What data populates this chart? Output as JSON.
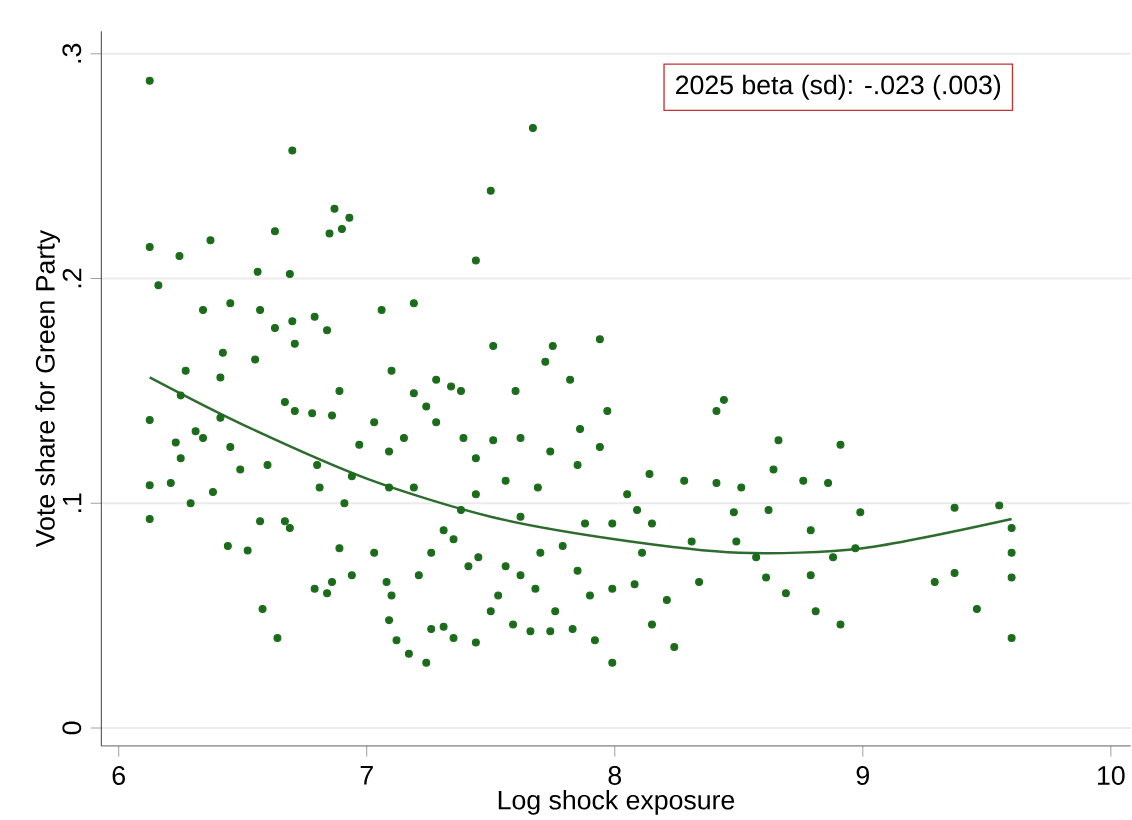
{
  "chart_data": {
    "type": "scatter",
    "xlabel": "Log shock exposure",
    "ylabel": "Vote share for Green Party",
    "annotations": [
      "2025 beta (sd): -.023 (.003)"
    ],
    "xlim": [
      5.93,
      10.08
    ],
    "xticks": [
      6,
      7,
      8,
      9,
      10
    ],
    "ylim": [
      -0.008,
      0.31
    ],
    "yticks": [
      {
        "value": 0,
        "label": "0"
      },
      {
        "value": 0.1,
        "label": ".1"
      },
      {
        "value": 0.2,
        "label": ".2"
      },
      {
        "value": 0.3,
        "label": ".3"
      }
    ],
    "grid": "y",
    "series": [
      {
        "marker": "circle",
        "color": "#1a6b1a",
        "x": [
          6.125,
          6.125,
          6.16,
          6.125,
          6.125,
          6.125,
          6.245,
          6.37,
          6.34,
          6.45,
          6.42,
          6.41,
          6.27,
          6.25,
          6.23,
          6.25,
          6.31,
          6.34,
          6.21,
          6.29,
          6.41,
          6.45,
          6.49,
          6.38,
          6.44,
          6.52,
          6.55,
          6.56,
          6.57,
          6.63,
          6.63,
          6.6,
          6.57,
          6.58,
          6.64,
          6.7,
          6.69,
          6.7,
          6.71,
          6.67,
          6.71,
          6.67,
          6.69,
          6.79,
          6.84,
          6.87,
          6.85,
          6.9,
          6.93,
          6.78,
          6.86,
          6.89,
          6.8,
          6.81,
          6.79,
          6.84,
          6.86,
          6.89,
          6.94,
          6.91,
          6.94,
          6.97,
          7.06,
          7.19,
          7.1,
          7.03,
          7.09,
          7.15,
          7.19,
          7.24,
          7.28,
          7.34,
          7.38,
          7.39,
          7.28,
          7.19,
          7.09,
          7.03,
          7.08,
          7.1,
          7.09,
          7.12,
          7.17,
          7.24,
          7.26,
          7.31,
          7.35,
          7.44,
          7.21,
          7.26,
          7.31,
          7.35,
          7.41,
          7.45,
          7.44,
          7.38,
          7.44,
          7.51,
          7.51,
          7.44,
          7.5,
          7.67,
          7.6,
          7.72,
          7.75,
          7.82,
          7.62,
          7.74,
          7.56,
          7.62,
          7.69,
          7.56,
          7.62,
          7.68,
          7.59,
          7.66,
          7.74,
          7.76,
          7.53,
          7.5,
          7.7,
          7.79,
          7.85,
          7.86,
          7.94,
          7.97,
          7.94,
          7.88,
          7.85,
          7.9,
          7.83,
          7.92,
          7.99,
          7.99,
          7.99,
          8.05,
          8.09,
          8.14,
          8.15,
          8.08,
          8.15,
          8.24,
          8.21,
          8.11,
          8.28,
          8.41,
          8.44,
          8.41,
          8.51,
          8.48,
          8.31,
          8.34,
          8.49,
          8.57,
          8.61,
          8.62,
          8.64,
          8.66,
          8.69,
          8.76,
          8.79,
          8.79,
          8.81,
          8.86,
          8.91,
          8.88,
          8.91,
          8.97,
          8.99,
          9.29,
          9.37,
          9.37,
          9.46,
          9.55,
          9.6,
          9.6,
          9.6,
          9.6
        ],
        "values": [
          0.288,
          0.214,
          0.197,
          0.137,
          0.108,
          0.093,
          0.21,
          0.217,
          0.186,
          0.189,
          0.167,
          0.156,
          0.159,
          0.148,
          0.127,
          0.12,
          0.132,
          0.129,
          0.109,
          0.1,
          0.138,
          0.125,
          0.115,
          0.105,
          0.081,
          0.079,
          0.164,
          0.203,
          0.186,
          0.221,
          0.178,
          0.117,
          0.092,
          0.053,
          0.04,
          0.257,
          0.202,
          0.181,
          0.171,
          0.145,
          0.141,
          0.092,
          0.089,
          0.183,
          0.177,
          0.231,
          0.22,
          0.222,
          0.227,
          0.14,
          0.139,
          0.15,
          0.117,
          0.107,
          0.062,
          0.06,
          0.065,
          0.08,
          0.068,
          0.1,
          0.112,
          0.126,
          0.186,
          0.189,
          0.159,
          0.136,
          0.123,
          0.129,
          0.149,
          0.143,
          0.155,
          0.152,
          0.15,
          0.129,
          0.136,
          0.107,
          0.107,
          0.078,
          0.065,
          0.059,
          0.048,
          0.039,
          0.033,
          0.029,
          0.044,
          0.045,
          0.04,
          0.038,
          0.068,
          0.078,
          0.088,
          0.084,
          0.072,
          0.076,
          0.104,
          0.097,
          0.12,
          0.128,
          0.17,
          0.208,
          0.239,
          0.267,
          0.15,
          0.163,
          0.17,
          0.155,
          0.129,
          0.123,
          0.11,
          0.094,
          0.107,
          0.072,
          0.068,
          0.062,
          0.046,
          0.043,
          0.043,
          0.052,
          0.059,
          0.052,
          0.078,
          0.081,
          0.117,
          0.133,
          0.173,
          0.141,
          0.125,
          0.091,
          0.07,
          0.059,
          0.044,
          0.039,
          0.029,
          0.062,
          0.091,
          0.104,
          0.097,
          0.113,
          0.091,
          0.064,
          0.046,
          0.036,
          0.057,
          0.078,
          0.11,
          0.141,
          0.146,
          0.109,
          0.107,
          0.096,
          0.083,
          0.065,
          0.083,
          0.076,
          0.067,
          0.097,
          0.115,
          0.128,
          0.06,
          0.11,
          0.088,
          0.068,
          0.052,
          0.109,
          0.126,
          0.076,
          0.046,
          0.08,
          0.096,
          0.065,
          0.098,
          0.069,
          0.053,
          0.099,
          0.089,
          0.078,
          0.067,
          0.04
        ]
      },
      {
        "type": "line",
        "marker": "none",
        "color": "#2e6b2e",
        "line_style": "solid",
        "x": [
          6.125,
          6.5,
          7,
          7.5,
          8,
          8.5,
          9,
          9.6
        ],
        "values": [
          0.156,
          0.135,
          0.111,
          0.094,
          0.084,
          0.078,
          0.08,
          0.093
        ]
      }
    ]
  }
}
